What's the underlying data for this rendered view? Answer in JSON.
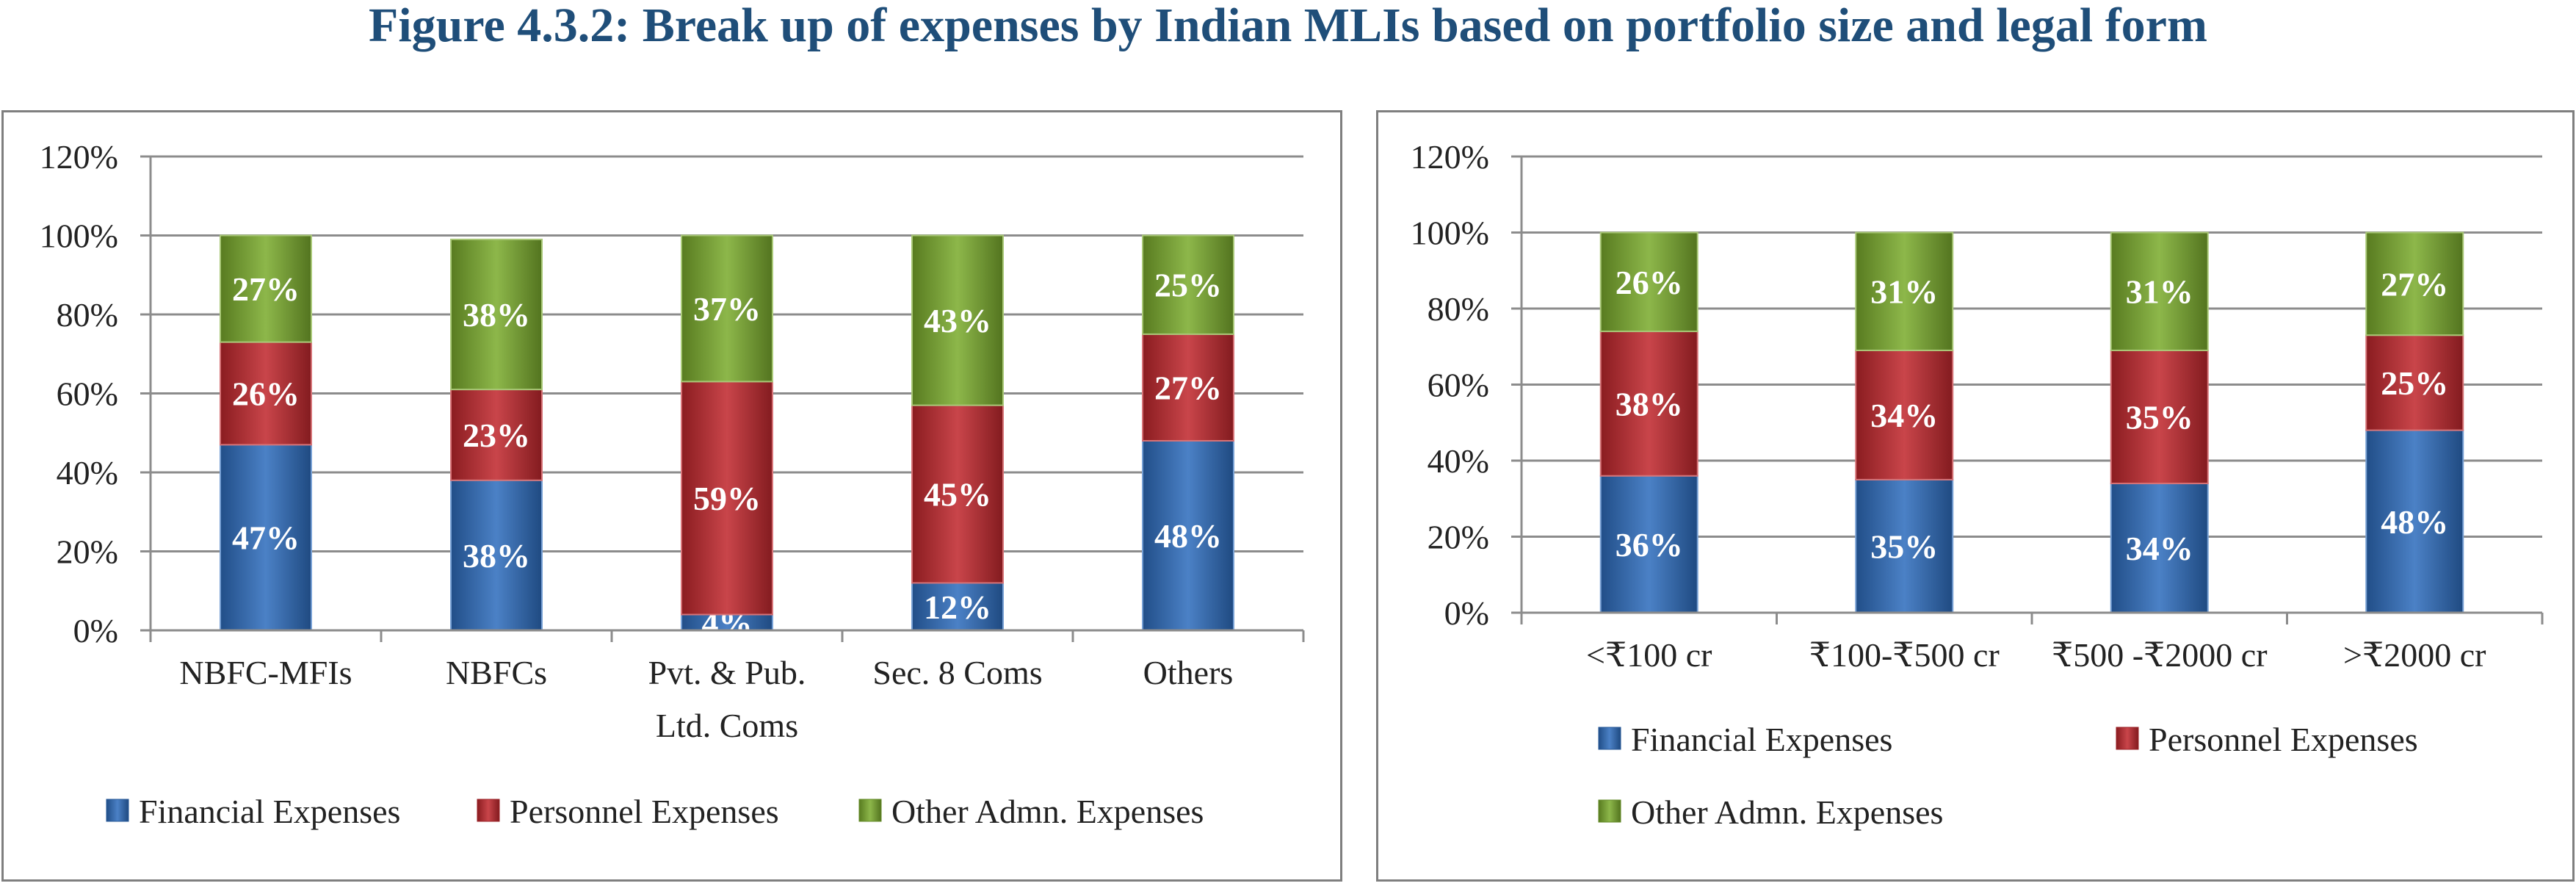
{
  "title": "Figure 4.3.2: Break up of expenses by Indian MLIs based on portfolio size and legal form",
  "colors": {
    "title": "#1f4e79",
    "financial": "#2e6dbd",
    "personnel": "#c0272d",
    "other": "#7aab2d",
    "grid": "#8c8c8c",
    "text": "#222222",
    "label": "#ffffff"
  },
  "chart_data": [
    {
      "type": "bar",
      "stacked": true,
      "categories": [
        [
          "NBFC-MFIs"
        ],
        [
          "NBFCs"
        ],
        [
          "Pvt. & Pub.",
          "Ltd. Coms"
        ],
        [
          "Sec. 8 Coms"
        ],
        [
          "Others"
        ]
      ],
      "y_ticks": [
        "0%",
        "20%",
        "40%",
        "60%",
        "80%",
        "100%",
        "120%"
      ],
      "ylim": [
        0,
        120
      ],
      "grid": true,
      "legend_position": "bottom",
      "series": [
        {
          "name": "Financial Expenses",
          "color_key": "financial",
          "values": [
            47,
            38,
            4,
            12,
            48
          ],
          "labels": [
            "47%",
            "38%",
            "4%",
            "12%",
            "48%"
          ]
        },
        {
          "name": "Personnel Expenses",
          "color_key": "personnel",
          "values": [
            26,
            23,
            59,
            45,
            27
          ],
          "labels": [
            "26%",
            "23%",
            "59%",
            "45%",
            "27%"
          ]
        },
        {
          "name": "Other Admn. Expenses",
          "color_key": "other",
          "values": [
            27,
            38,
            37,
            43,
            25
          ],
          "labels": [
            "27%",
            "38%",
            "37%",
            "43%",
            "25%"
          ]
        }
      ]
    },
    {
      "type": "bar",
      "stacked": true,
      "categories": [
        [
          "<₹100 cr"
        ],
        [
          "₹100-₹500 cr"
        ],
        [
          "₹500 -₹2000 cr"
        ],
        [
          ">₹2000 cr"
        ]
      ],
      "y_ticks": [
        "0%",
        "20%",
        "40%",
        "60%",
        "80%",
        "100%",
        "120%"
      ],
      "ylim": [
        0,
        120
      ],
      "grid": true,
      "legend_position": "bottom",
      "series": [
        {
          "name": "Financial Expenses",
          "color_key": "financial",
          "values": [
            36,
            35,
            34,
            48
          ],
          "labels": [
            "36%",
            "35%",
            "34%",
            "48%"
          ]
        },
        {
          "name": "Personnel Expenses",
          "color_key": "personnel",
          "values": [
            38,
            34,
            35,
            25
          ],
          "labels": [
            "38%",
            "34%",
            "35%",
            "25%"
          ]
        },
        {
          "name": "Other Admn. Expenses",
          "color_key": "other",
          "values": [
            26,
            31,
            31,
            27
          ],
          "labels": [
            "26%",
            "31%",
            "31%",
            "27%"
          ]
        }
      ]
    }
  ]
}
